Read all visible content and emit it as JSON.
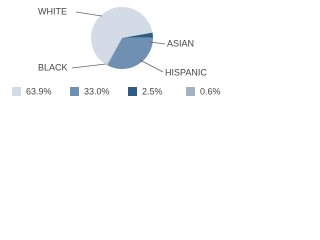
{
  "chart_data": {
    "type": "pie",
    "categories": [
      "WHITE",
      "HISPANIC",
      "ASIAN",
      "BLACK"
    ],
    "values": [
      63.9,
      33.0,
      2.5,
      0.6
    ],
    "value_labels": [
      "63.9%",
      "33.0%",
      "2.5%",
      "0.6%"
    ],
    "colors": [
      "#d3dbe6",
      "#6f8fb3",
      "#2f5c85",
      "#a3b3c7"
    ]
  }
}
